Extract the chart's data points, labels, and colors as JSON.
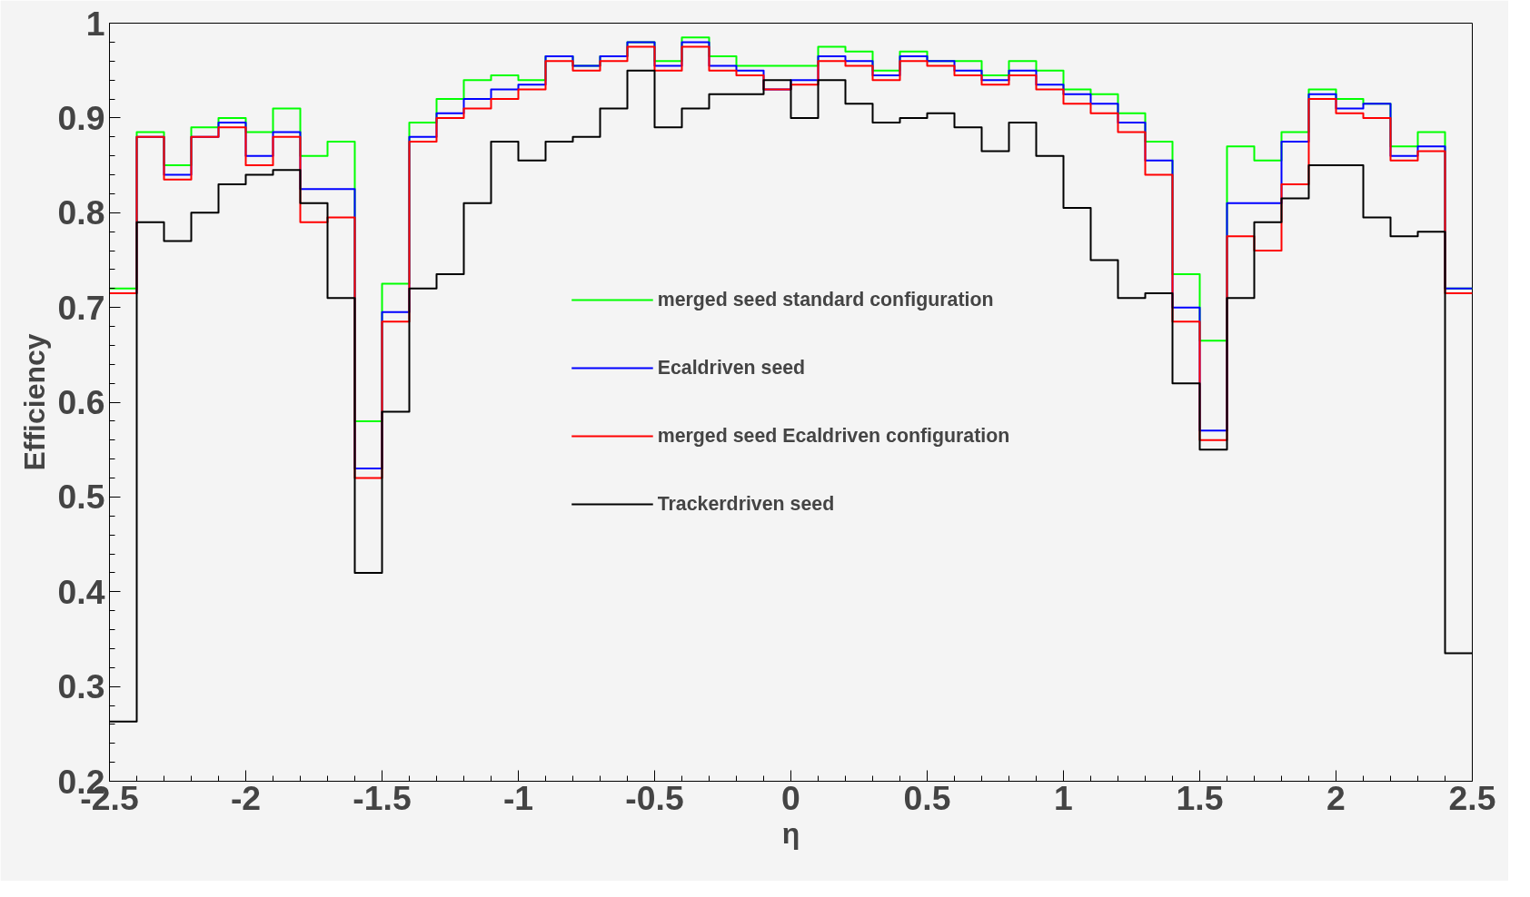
{
  "chart_data": {
    "type": "histogram",
    "xlabel": "η",
    "ylabel": "Efficiency",
    "bins": [
      -2.5,
      -2.4,
      -2.3,
      -2.2,
      -2.1,
      -2.0,
      -1.9,
      -1.8,
      -1.7,
      -1.6,
      -1.5,
      -1.4,
      -1.3,
      -1.2,
      -1.1,
      -1.0,
      -0.9,
      -0.8,
      -0.7,
      -0.6,
      -0.5,
      -0.4,
      -0.3,
      -0.2,
      -0.1,
      0.0,
      0.1,
      0.2,
      0.3,
      0.4,
      0.5,
      0.6,
      0.7,
      0.8,
      0.9,
      1.0,
      1.1,
      1.2,
      1.3,
      1.4,
      1.5,
      1.6,
      1.7,
      1.8,
      1.9,
      2.0,
      2.1,
      2.2,
      2.3,
      2.4,
      2.5
    ],
    "series": [
      {
        "name": "merged seed standard configuration",
        "color": "#00ff00",
        "values": [
          0.72,
          0.885,
          0.85,
          0.89,
          0.9,
          0.885,
          0.91,
          0.86,
          0.875,
          0.58,
          0.725,
          0.895,
          0.92,
          0.94,
          0.945,
          0.94,
          0.965,
          0.955,
          0.965,
          0.98,
          0.96,
          0.985,
          0.965,
          0.955,
          0.955,
          0.955,
          0.975,
          0.97,
          0.95,
          0.97,
          0.96,
          0.96,
          0.945,
          0.96,
          0.95,
          0.93,
          0.925,
          0.905,
          0.875,
          0.735,
          0.665,
          0.87,
          0.855,
          0.885,
          0.93,
          0.92,
          0.915,
          0.87,
          0.885,
          0.72
        ]
      },
      {
        "name": "Ecaldriven seed",
        "color": "#0000ff",
        "values": [
          0.715,
          0.88,
          0.84,
          0.88,
          0.895,
          0.86,
          0.885,
          0.825,
          0.825,
          0.53,
          0.695,
          0.88,
          0.905,
          0.92,
          0.93,
          0.935,
          0.965,
          0.955,
          0.965,
          0.98,
          0.955,
          0.98,
          0.955,
          0.95,
          0.93,
          0.94,
          0.965,
          0.96,
          0.945,
          0.965,
          0.96,
          0.95,
          0.94,
          0.95,
          0.935,
          0.925,
          0.915,
          0.895,
          0.855,
          0.7,
          0.57,
          0.81,
          0.81,
          0.875,
          0.925,
          0.91,
          0.915,
          0.86,
          0.87,
          0.72
        ]
      },
      {
        "name": "merged seed Ecaldriven configuration",
        "color": "#ff0000",
        "values": [
          0.715,
          0.88,
          0.835,
          0.88,
          0.89,
          0.85,
          0.88,
          0.79,
          0.795,
          0.52,
          0.685,
          0.875,
          0.9,
          0.91,
          0.92,
          0.93,
          0.96,
          0.95,
          0.96,
          0.975,
          0.95,
          0.975,
          0.95,
          0.945,
          0.93,
          0.935,
          0.96,
          0.955,
          0.94,
          0.96,
          0.955,
          0.945,
          0.935,
          0.945,
          0.93,
          0.915,
          0.905,
          0.885,
          0.84,
          0.685,
          0.56,
          0.775,
          0.76,
          0.83,
          0.92,
          0.905,
          0.9,
          0.855,
          0.865,
          0.715
        ]
      },
      {
        "name": "Trackerdriven seed",
        "color": "#000000",
        "values": [
          0.263,
          0.79,
          0.77,
          0.8,
          0.83,
          0.84,
          0.845,
          0.81,
          0.71,
          0.42,
          0.59,
          0.72,
          0.735,
          0.81,
          0.875,
          0.855,
          0.875,
          0.88,
          0.91,
          0.95,
          0.89,
          0.91,
          0.925,
          0.925,
          0.94,
          0.9,
          0.94,
          0.915,
          0.895,
          0.9,
          0.905,
          0.89,
          0.865,
          0.895,
          0.86,
          0.805,
          0.75,
          0.71,
          0.715,
          0.62,
          0.55,
          0.71,
          0.79,
          0.815,
          0.85,
          0.85,
          0.795,
          0.775,
          0.78,
          0.335
        ]
      }
    ],
    "xlim": [
      -2.5,
      2.5
    ],
    "xticks": [
      -2.5,
      -2,
      -1.5,
      -1,
      -0.5,
      0,
      0.5,
      1,
      1.5,
      2,
      2.5
    ],
    "ylim": [
      0.2,
      1.0
    ],
    "yticks": [
      0.2,
      0.3,
      0.4,
      0.5,
      0.6,
      0.7,
      0.8,
      0.9,
      1
    ],
    "grid": false,
    "legend": "center"
  }
}
